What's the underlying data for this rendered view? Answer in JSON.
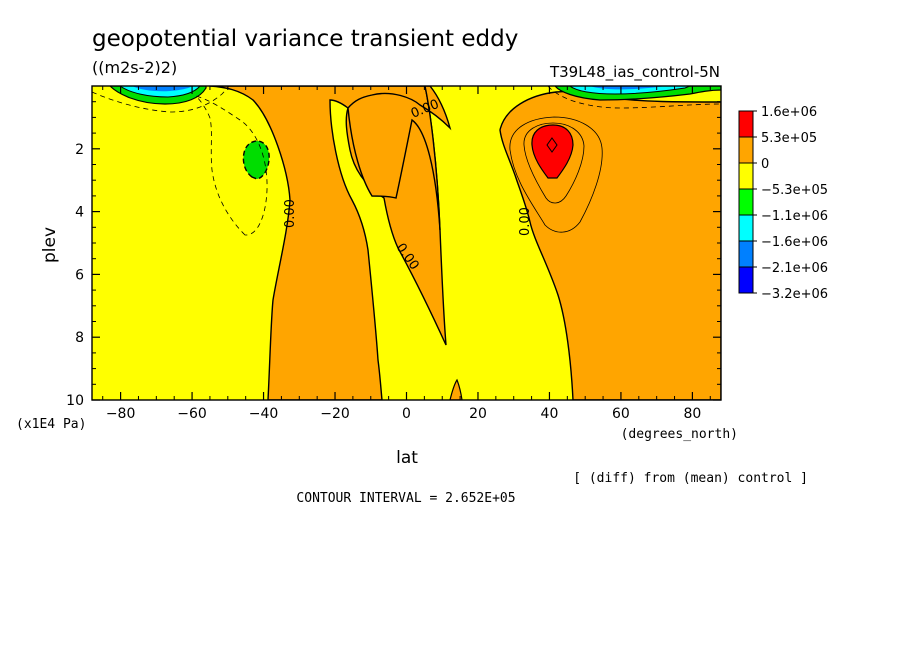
{
  "chart_data": {
    "type": "contour",
    "title": "geopotential variance transient eddy",
    "units": "((m2s-2)2)",
    "experiment": "T39L48_ias_control-5N",
    "xlabel": "lat",
    "xunits": "(degrees_north)",
    "ylabel": "plev",
    "yunits": "(x1E4 Pa)",
    "xlim": [
      -88,
      88
    ],
    "ylim": [
      10,
      0
    ],
    "x_ticks": [
      -80,
      -60,
      -40,
      -20,
      0,
      20,
      40,
      60,
      80
    ],
    "y_ticks": [
      2,
      4,
      6,
      8,
      10
    ],
    "contour_interval_label": "CONTOUR INTERVAL = 2.652E+05",
    "note": "[ (diff) from (mean) control ]",
    "contour_labels": [
      "0.00",
      "0.00",
      "0.00",
      "0.00"
    ],
    "legend": {
      "labels": [
        "1.6e+06",
        "5.3e+05",
        "0",
        "−5.3e+05",
        "−1.1e+06",
        "−1.6e+06",
        "−2.1e+06",
        "−3.2e+06"
      ],
      "colors": [
        "#ff0000",
        "#ffa500",
        "#ffff00",
        "#00ff00",
        "#00ffff",
        "#0080ff",
        "#0000ff"
      ]
    },
    "colors": {
      "positive": "#ffa500",
      "strong_positive": "#ff0000",
      "neutral": "#ffff00",
      "negative": "#00dd00",
      "strong_negative": "#00ffff",
      "stronger_negative": "#0080ff"
    }
  }
}
